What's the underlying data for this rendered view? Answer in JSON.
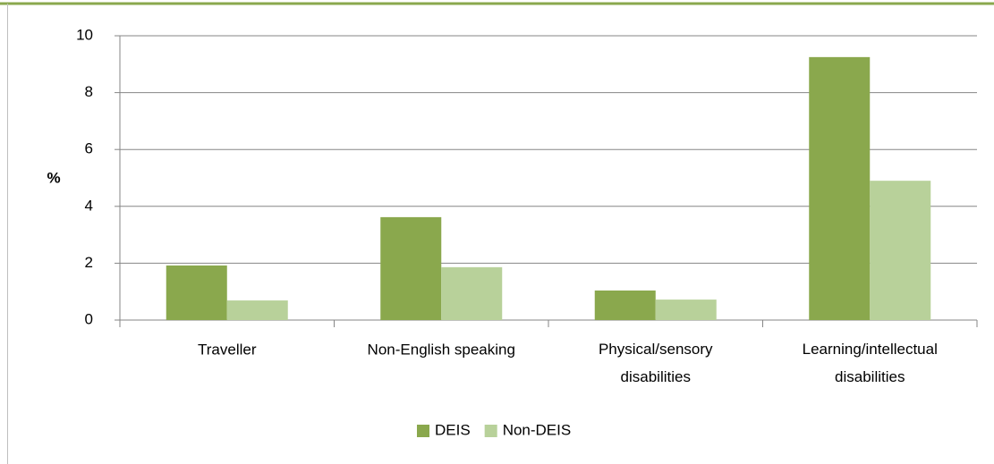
{
  "chart_data": {
    "type": "bar",
    "y_label": "%",
    "categories": [
      "Traveller",
      "Non-English speaking",
      "Physical/sensory disabilities",
      "Learning/intellectual disabilities"
    ],
    "series": [
      {
        "name": "DEIS",
        "color": "#8aa84d",
        "values": [
          1.92,
          3.62,
          1.04,
          9.25
        ]
      },
      {
        "name": "Non-DEIS",
        "color": "#b8d19a",
        "values": [
          0.69,
          1.86,
          0.72,
          4.9
        ]
      }
    ],
    "ylim": [
      0,
      10
    ],
    "yticks": [
      0,
      2,
      4,
      6,
      8,
      10
    ],
    "grid": true,
    "legend": "bottom"
  }
}
